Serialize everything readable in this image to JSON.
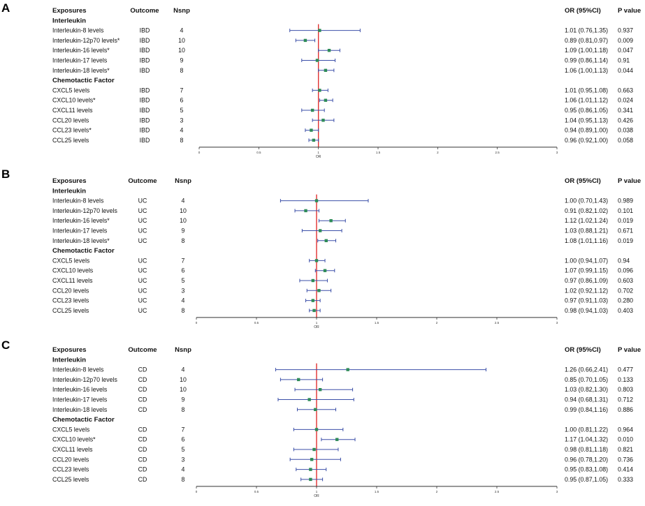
{
  "chart_data": [
    {
      "type": "forest",
      "panel_label": "A",
      "columns": {
        "exposures": "Exposures",
        "outcome": "Outcome",
        "nsnp": "Nsnp",
        "or_ci": "OR (95%CI)",
        "p_value": "P value"
      },
      "groups": [
        "Interleukin",
        "Chemotactic Factor"
      ],
      "xlabel": "OR",
      "xlim": [
        0,
        3
      ],
      "xticks": [
        "0",
        "0.5",
        "1",
        "1.5",
        "2",
        "2.5",
        "3"
      ],
      "reference_line": 1,
      "rows": [
        {
          "group": 0,
          "exposure": "Interleukin-8 levels",
          "outcome": "IBD",
          "nsnp": "4",
          "or": 1.01,
          "lo": 0.76,
          "hi": 1.35,
          "or_ci": "1.01 (0.76,1.35)",
          "p": "0.937"
        },
        {
          "group": 0,
          "exposure": "Interleukin-12p70 levels*",
          "outcome": "IBD",
          "nsnp": "10",
          "or": 0.89,
          "lo": 0.81,
          "hi": 0.97,
          "or_ci": "0.89 (0.81,0.97)",
          "p": "0.009"
        },
        {
          "group": 0,
          "exposure": "Interleukin-16 levels*",
          "outcome": "IBD",
          "nsnp": "10",
          "or": 1.09,
          "lo": 1.0,
          "hi": 1.18,
          "or_ci": "1.09 (1.00,1.18)",
          "p": "0.047"
        },
        {
          "group": 0,
          "exposure": "Interleukin-17 levels",
          "outcome": "IBD",
          "nsnp": "9",
          "or": 0.99,
          "lo": 0.86,
          "hi": 1.14,
          "or_ci": "0.99 (0.86,1.14)",
          "p": "0.91"
        },
        {
          "group": 0,
          "exposure": "Interleukin-18 levels*",
          "outcome": "IBD",
          "nsnp": "8",
          "or": 1.06,
          "lo": 1.0,
          "hi": 1.13,
          "or_ci": "1.06 (1.00,1.13)",
          "p": "0.044"
        },
        {
          "group": 1,
          "exposure": "CXCL5 levels",
          "outcome": "IBD",
          "nsnp": "7",
          "or": 1.01,
          "lo": 0.95,
          "hi": 1.08,
          "or_ci": "1.01 (0.95,1.08)",
          "p": "0.663"
        },
        {
          "group": 1,
          "exposure": "CXCL10 levels*",
          "outcome": "IBD",
          "nsnp": "6",
          "or": 1.06,
          "lo": 1.01,
          "hi": 1.12,
          "or_ci": "1.06 (1.01,1.12)",
          "p": "0.024"
        },
        {
          "group": 1,
          "exposure": "CXCL11 levels",
          "outcome": "IBD",
          "nsnp": "5",
          "or": 0.95,
          "lo": 0.86,
          "hi": 1.05,
          "or_ci": "0.95 (0.86,1.05)",
          "p": "0.341"
        },
        {
          "group": 1,
          "exposure": "CCL20 levels",
          "outcome": "IBD",
          "nsnp": "3",
          "or": 1.04,
          "lo": 0.95,
          "hi": 1.13,
          "or_ci": "1.04 (0.95,1.13)",
          "p": "0.426"
        },
        {
          "group": 1,
          "exposure": "CCL23 levels*",
          "outcome": "IBD",
          "nsnp": "4",
          "or": 0.94,
          "lo": 0.89,
          "hi": 1.0,
          "or_ci": "0.94 (0.89,1.00)",
          "p": "0.038"
        },
        {
          "group": 1,
          "exposure": "CCL25 levels",
          "outcome": "IBD",
          "nsnp": "8",
          "or": 0.96,
          "lo": 0.92,
          "hi": 1.0,
          "or_ci": "0.96 (0.92,1.00)",
          "p": "0.058"
        }
      ]
    },
    {
      "type": "forest",
      "panel_label": "B",
      "columns": {
        "exposures": "Exposures",
        "outcome": "Outcome",
        "nsnp": "Nsnp",
        "or_ci": "OR (95%CI)",
        "p_value": "P value"
      },
      "groups": [
        "Interleukin",
        "Chemotactic Factor"
      ],
      "xlabel": "OR",
      "xlim": [
        0,
        3
      ],
      "xticks": [
        "0",
        "0.5",
        "1",
        "1.5",
        "2",
        "2.5",
        "3"
      ],
      "reference_line": 1,
      "rows": [
        {
          "group": 0,
          "exposure": "Interleukin-8 levels",
          "outcome": "UC",
          "nsnp": "4",
          "or": 1.0,
          "lo": 0.7,
          "hi": 1.43,
          "or_ci": "1.00 (0.70,1.43)",
          "p": "0.989"
        },
        {
          "group": 0,
          "exposure": "Interleukin-12p70 levels",
          "outcome": "UC",
          "nsnp": "10",
          "or": 0.91,
          "lo": 0.82,
          "hi": 1.02,
          "or_ci": "0.91 (0.82,1.02)",
          "p": "0.101"
        },
        {
          "group": 0,
          "exposure": "Interleukin-16 levels*",
          "outcome": "UC",
          "nsnp": "10",
          "or": 1.12,
          "lo": 1.02,
          "hi": 1.24,
          "or_ci": "1.12 (1.02,1.24)",
          "p": "0.019"
        },
        {
          "group": 0,
          "exposure": "Interleukin-17 levels",
          "outcome": "UC",
          "nsnp": "9",
          "or": 1.03,
          "lo": 0.88,
          "hi": 1.21,
          "or_ci": "1.03 (0.88,1.21)",
          "p": "0.671"
        },
        {
          "group": 0,
          "exposure": "Interleukin-18 levels*",
          "outcome": "UC",
          "nsnp": "8",
          "or": 1.08,
          "lo": 1.01,
          "hi": 1.16,
          "or_ci": "1.08 (1.01,1.16)",
          "p": "0.019"
        },
        {
          "group": 1,
          "exposure": "CXCL5 levels",
          "outcome": "UC",
          "nsnp": "7",
          "or": 1.0,
          "lo": 0.94,
          "hi": 1.07,
          "or_ci": "1.00 (0.94,1.07)",
          "p": "0.94"
        },
        {
          "group": 1,
          "exposure": "CXCL10 levels",
          "outcome": "UC",
          "nsnp": "6",
          "or": 1.07,
          "lo": 0.99,
          "hi": 1.15,
          "or_ci": "1.07 (0.99,1.15)",
          "p": "0.096"
        },
        {
          "group": 1,
          "exposure": "CXCL11 levels",
          "outcome": "UC",
          "nsnp": "5",
          "or": 0.97,
          "lo": 0.86,
          "hi": 1.09,
          "or_ci": "0.97 (0.86,1.09)",
          "p": "0.603"
        },
        {
          "group": 1,
          "exposure": "CCL20 levels",
          "outcome": "UC",
          "nsnp": "3",
          "or": 1.02,
          "lo": 0.92,
          "hi": 1.12,
          "or_ci": "1.02 (0.92,1.12)",
          "p": "0.702"
        },
        {
          "group": 1,
          "exposure": "CCL23 levels",
          "outcome": "UC",
          "nsnp": "4",
          "or": 0.97,
          "lo": 0.91,
          "hi": 1.03,
          "or_ci": "0.97 (0.91,1.03)",
          "p": "0.280"
        },
        {
          "group": 1,
          "exposure": "CCL25 levels",
          "outcome": "UC",
          "nsnp": "8",
          "or": 0.98,
          "lo": 0.94,
          "hi": 1.03,
          "or_ci": "0.98 (0.94,1.03)",
          "p": "0.403"
        }
      ]
    },
    {
      "type": "forest",
      "panel_label": "C",
      "columns": {
        "exposures": "Exposures",
        "outcome": "Outcome",
        "nsnp": "Nsnp",
        "or_ci": "OR (95%CI)",
        "p_value": "P value"
      },
      "groups": [
        "Interleukin",
        "Chemotactic Factor"
      ],
      "xlabel": "OR",
      "xlim": [
        0,
        3
      ],
      "xticks": [
        "0",
        "0.5",
        "1",
        "1.5",
        "2",
        "2.5",
        "3"
      ],
      "reference_line": 1,
      "rows": [
        {
          "group": 0,
          "exposure": "Interleukin-8 levels",
          "outcome": "CD",
          "nsnp": "4",
          "or": 1.26,
          "lo": 0.66,
          "hi": 2.41,
          "or_ci": "1.26 (0.66,2.41)",
          "p": "0.477"
        },
        {
          "group": 0,
          "exposure": "Interleukin-12p70 levels",
          "outcome": "CD",
          "nsnp": "10",
          "or": 0.85,
          "lo": 0.7,
          "hi": 1.05,
          "or_ci": "0.85 (0.70,1.05)",
          "p": "0.133"
        },
        {
          "group": 0,
          "exposure": "Interleukin-16 levels",
          "outcome": "CD",
          "nsnp": "10",
          "or": 1.03,
          "lo": 0.82,
          "hi": 1.3,
          "or_ci": "1.03 (0.82,1.30)",
          "p": "0.803"
        },
        {
          "group": 0,
          "exposure": "Interleukin-17 levels",
          "outcome": "CD",
          "nsnp": "9",
          "or": 0.94,
          "lo": 0.68,
          "hi": 1.31,
          "or_ci": "0.94 (0.68,1.31)",
          "p": "0.712"
        },
        {
          "group": 0,
          "exposure": "Interleukin-18 levels",
          "outcome": "CD",
          "nsnp": "8",
          "or": 0.99,
          "lo": 0.84,
          "hi": 1.16,
          "or_ci": "0.99 (0.84,1.16)",
          "p": "0.886"
        },
        {
          "group": 1,
          "exposure": "CXCL5 levels",
          "outcome": "CD",
          "nsnp": "7",
          "or": 1.0,
          "lo": 0.81,
          "hi": 1.22,
          "or_ci": "1.00 (0.81,1.22)",
          "p": "0.964"
        },
        {
          "group": 1,
          "exposure": "CXCL10 levels*",
          "outcome": "CD",
          "nsnp": "6",
          "or": 1.17,
          "lo": 1.04,
          "hi": 1.32,
          "or_ci": "1.17 (1.04,1.32)",
          "p": "0.010"
        },
        {
          "group": 1,
          "exposure": "CXCL11 levels",
          "outcome": "CD",
          "nsnp": "5",
          "or": 0.98,
          "lo": 0.81,
          "hi": 1.18,
          "or_ci": "0.98 (0.81,1.18)",
          "p": "0.821"
        },
        {
          "group": 1,
          "exposure": "CCL20 levels",
          "outcome": "CD",
          "nsnp": "3",
          "or": 0.96,
          "lo": 0.78,
          "hi": 1.2,
          "or_ci": "0.96 (0.78,1.20)",
          "p": "0.736"
        },
        {
          "group": 1,
          "exposure": "CCL23 levels",
          "outcome": "CD",
          "nsnp": "4",
          "or": 0.95,
          "lo": 0.83,
          "hi": 1.08,
          "or_ci": "0.95 (0.83,1.08)",
          "p": "0.414"
        },
        {
          "group": 1,
          "exposure": "CCL25 levels",
          "outcome": "CD",
          "nsnp": "8",
          "or": 0.95,
          "lo": 0.87,
          "hi": 1.05,
          "or_ci": "0.95 (0.87,1.05)",
          "p": "0.333"
        }
      ]
    }
  ],
  "colors": {
    "ci_line": "#3b4fa8",
    "point": "#2e8b57",
    "reference_line": "#e03030",
    "axis": "#333333"
  }
}
